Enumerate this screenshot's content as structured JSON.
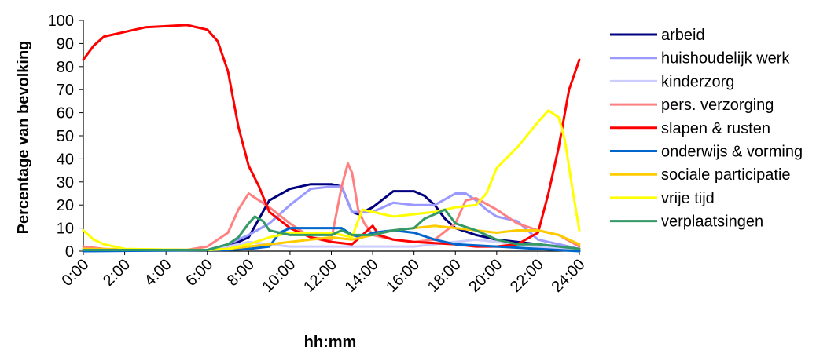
{
  "chart_data": {
    "type": "line",
    "xlabel": "hh:mm",
    "ylabel": "Percentage van bevolking",
    "ylim": [
      0,
      100
    ],
    "yticks": [
      0,
      10,
      20,
      30,
      40,
      50,
      60,
      70,
      80,
      90,
      100
    ],
    "xlim": [
      0,
      24
    ],
    "xticks": [
      0,
      2,
      4,
      6,
      8,
      10,
      12,
      14,
      16,
      18,
      20,
      22,
      24
    ],
    "xtick_labels": [
      "0:00",
      "2:00",
      "4:00",
      "6:00",
      "8:00",
      "10:00",
      "12:00",
      "14:00",
      "16:00",
      "18:00",
      "20:00",
      "22:00",
      "24:00"
    ],
    "x_unit": "hours",
    "grid": false,
    "legend_position": "right",
    "series": [
      {
        "name": "arbeid",
        "color": "#000080",
        "points": [
          [
            0,
            0.5
          ],
          [
            6,
            0.5
          ],
          [
            7,
            2
          ],
          [
            8,
            6
          ],
          [
            8.5,
            14
          ],
          [
            9,
            22
          ],
          [
            10,
            27
          ],
          [
            11,
            29
          ],
          [
            12,
            29
          ],
          [
            12.5,
            28
          ],
          [
            13,
            17
          ],
          [
            13.3,
            16
          ],
          [
            14,
            19
          ],
          [
            15,
            26
          ],
          [
            16,
            26
          ],
          [
            16.5,
            24
          ],
          [
            17,
            20
          ],
          [
            17.5,
            14
          ],
          [
            18,
            10
          ],
          [
            19,
            7
          ],
          [
            20,
            5
          ],
          [
            21,
            4
          ],
          [
            22,
            3
          ],
          [
            23,
            2
          ],
          [
            24,
            1
          ]
        ]
      },
      {
        "name": "huishoudelijk werk",
        "color": "#9999FF",
        "points": [
          [
            0,
            0.5
          ],
          [
            6,
            0.5
          ],
          [
            7,
            3
          ],
          [
            8,
            7
          ],
          [
            9,
            12
          ],
          [
            10,
            20
          ],
          [
            11,
            27
          ],
          [
            12,
            28
          ],
          [
            12.5,
            28
          ],
          [
            13,
            17
          ],
          [
            13.5,
            17
          ],
          [
            14,
            17
          ],
          [
            15,
            21
          ],
          [
            16,
            20
          ],
          [
            17,
            20
          ],
          [
            18,
            25
          ],
          [
            18.5,
            25
          ],
          [
            19,
            22
          ],
          [
            19.5,
            18
          ],
          [
            20,
            15
          ],
          [
            21,
            13
          ],
          [
            22,
            5
          ],
          [
            23,
            3
          ],
          [
            24,
            1
          ]
        ]
      },
      {
        "name": "kinderzorg",
        "color": "#CCCCFF",
        "points": [
          [
            0,
            0.3
          ],
          [
            6,
            0.5
          ],
          [
            7,
            2
          ],
          [
            8,
            4
          ],
          [
            9,
            3
          ],
          [
            10,
            2
          ],
          [
            12,
            2
          ],
          [
            13,
            2
          ],
          [
            14,
            2
          ],
          [
            16,
            2
          ],
          [
            17,
            3
          ],
          [
            18,
            4
          ],
          [
            19,
            5
          ],
          [
            20,
            4
          ],
          [
            21,
            3
          ],
          [
            22,
            2
          ],
          [
            24,
            0.5
          ]
        ]
      },
      {
        "name": "pers. verzorging",
        "color": "#FF8080",
        "points": [
          [
            0,
            2
          ],
          [
            1,
            1
          ],
          [
            2,
            0.5
          ],
          [
            5,
            0.5
          ],
          [
            6,
            2
          ],
          [
            7,
            8
          ],
          [
            7.5,
            18
          ],
          [
            8,
            25
          ],
          [
            8.5,
            22
          ],
          [
            9,
            19
          ],
          [
            10,
            12
          ],
          [
            11,
            6
          ],
          [
            12,
            5
          ],
          [
            12.5,
            28
          ],
          [
            12.8,
            38
          ],
          [
            13,
            34
          ],
          [
            13.3,
            18
          ],
          [
            13.6,
            12
          ],
          [
            14,
            7
          ],
          [
            15,
            5
          ],
          [
            16,
            4
          ],
          [
            17,
            5
          ],
          [
            18,
            12
          ],
          [
            18.5,
            22
          ],
          [
            19,
            23
          ],
          [
            20,
            18
          ],
          [
            21,
            12
          ],
          [
            22,
            9
          ],
          [
            23,
            7
          ],
          [
            24,
            2
          ]
        ]
      },
      {
        "name": "slapen & rusten",
        "color": "#FF0000",
        "points": [
          [
            0,
            83
          ],
          [
            0.5,
            89
          ],
          [
            1,
            93
          ],
          [
            2,
            95
          ],
          [
            3,
            97
          ],
          [
            4,
            97.5
          ],
          [
            5,
            98
          ],
          [
            6,
            96
          ],
          [
            6.5,
            91
          ],
          [
            7,
            78
          ],
          [
            7.5,
            54
          ],
          [
            8,
            37
          ],
          [
            8.5,
            28
          ],
          [
            9,
            17
          ],
          [
            10,
            10
          ],
          [
            11,
            6
          ],
          [
            12,
            4
          ],
          [
            13,
            3
          ],
          [
            14,
            11
          ],
          [
            14.3,
            7
          ],
          [
            15,
            5
          ],
          [
            16,
            4
          ],
          [
            18,
            3
          ],
          [
            19,
            2
          ],
          [
            20,
            2
          ],
          [
            21,
            3
          ],
          [
            22,
            8
          ],
          [
            22.5,
            25
          ],
          [
            23,
            45
          ],
          [
            23.5,
            70
          ],
          [
            24,
            83
          ]
        ]
      },
      {
        "name": "onderwijs & vorming",
        "color": "#0066CC",
        "points": [
          [
            0,
            0
          ],
          [
            7,
            0.5
          ],
          [
            8,
            1
          ],
          [
            9,
            2
          ],
          [
            9.5,
            8
          ],
          [
            10,
            10
          ],
          [
            11,
            10
          ],
          [
            12,
            10
          ],
          [
            12.5,
            10
          ],
          [
            13,
            7
          ],
          [
            13.5,
            6
          ],
          [
            14,
            8
          ],
          [
            15,
            9
          ],
          [
            16,
            8
          ],
          [
            17,
            5
          ],
          [
            18,
            3
          ],
          [
            20,
            2
          ],
          [
            22,
            1
          ],
          [
            24,
            0
          ]
        ]
      },
      {
        "name": "sociale participatie",
        "color": "#FFCC00",
        "points": [
          [
            0,
            1
          ],
          [
            6,
            0.5
          ],
          [
            7,
            1
          ],
          [
            8,
            2
          ],
          [
            9,
            3
          ],
          [
            10,
            4
          ],
          [
            11,
            5
          ],
          [
            12,
            6
          ],
          [
            13,
            5
          ],
          [
            14,
            7
          ],
          [
            15,
            9
          ],
          [
            16,
            10
          ],
          [
            17,
            11
          ],
          [
            18,
            10
          ],
          [
            19,
            9
          ],
          [
            20,
            8
          ],
          [
            21,
            9
          ],
          [
            22,
            9
          ],
          [
            23,
            7
          ],
          [
            24,
            3
          ]
        ]
      },
      {
        "name": "vrije tijd",
        "color": "#FFFF00",
        "points": [
          [
            0,
            9
          ],
          [
            0.5,
            5
          ],
          [
            1,
            3
          ],
          [
            2,
            1
          ],
          [
            5,
            0.5
          ],
          [
            6,
            0.5
          ],
          [
            7,
            1
          ],
          [
            8,
            3
          ],
          [
            9,
            6
          ],
          [
            10,
            8
          ],
          [
            11,
            8
          ],
          [
            12,
            8
          ],
          [
            13,
            6
          ],
          [
            13.5,
            18
          ],
          [
            14,
            17
          ],
          [
            15,
            15
          ],
          [
            16,
            16
          ],
          [
            17,
            17
          ],
          [
            18,
            19
          ],
          [
            19,
            20
          ],
          [
            19.5,
            25
          ],
          [
            20,
            36
          ],
          [
            21,
            45
          ],
          [
            22,
            56
          ],
          [
            22.5,
            61
          ],
          [
            23,
            58
          ],
          [
            23.3,
            48
          ],
          [
            23.7,
            25
          ],
          [
            24,
            9
          ]
        ]
      },
      {
        "name": "verplaatsingen",
        "color": "#339966",
        "points": [
          [
            0,
            0.5
          ],
          [
            6,
            0.5
          ],
          [
            7,
            3
          ],
          [
            7.5,
            6
          ],
          [
            8,
            12
          ],
          [
            8.3,
            15
          ],
          [
            8.7,
            13
          ],
          [
            9,
            9
          ],
          [
            10,
            7
          ],
          [
            11,
            7
          ],
          [
            12,
            7
          ],
          [
            12.5,
            9
          ],
          [
            13,
            7
          ],
          [
            14,
            7
          ],
          [
            15,
            9
          ],
          [
            16,
            10
          ],
          [
            16.5,
            14
          ],
          [
            17,
            16
          ],
          [
            17.5,
            18
          ],
          [
            18,
            12
          ],
          [
            19,
            9
          ],
          [
            20,
            5
          ],
          [
            21,
            3
          ],
          [
            22,
            3
          ],
          [
            23,
            2
          ],
          [
            24,
            1
          ]
        ]
      }
    ]
  }
}
